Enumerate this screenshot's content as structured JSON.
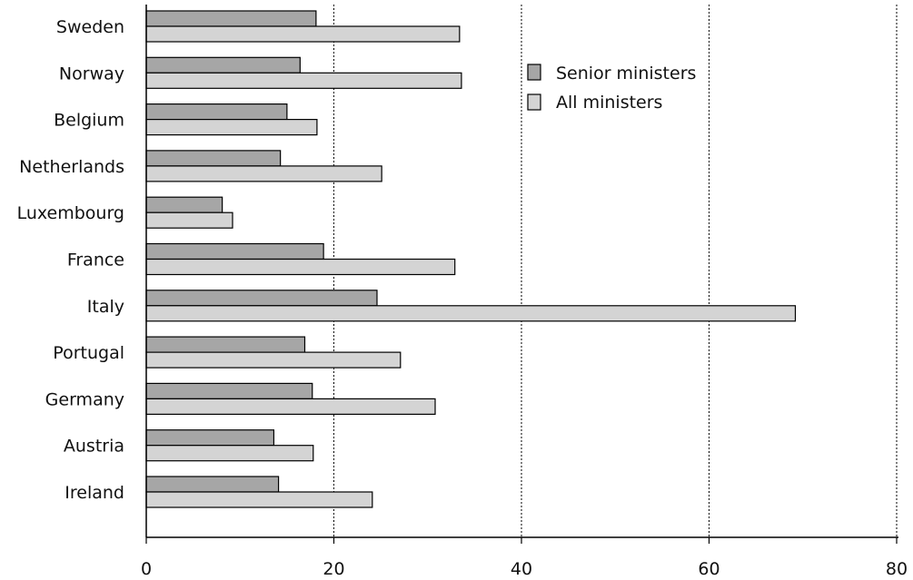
{
  "chart_data": {
    "type": "bar",
    "orientation": "horizontal",
    "categories": [
      "Sweden",
      "Norway",
      "Belgium",
      "Netherlands",
      "Luxembourg",
      "France",
      "Italy",
      "Portugal",
      "Germany",
      "Austria",
      "Ireland"
    ],
    "series": [
      {
        "name": "Senior ministers",
        "color": "#a6a6a6",
        "values": [
          18.1,
          16.4,
          15.0,
          14.3,
          8.1,
          18.9,
          24.6,
          16.9,
          17.7,
          13.6,
          14.1
        ]
      },
      {
        "name": "All ministers",
        "color": "#d4d4d4",
        "values": [
          33.4,
          33.6,
          18.2,
          25.1,
          9.2,
          32.9,
          69.2,
          27.1,
          30.8,
          17.8,
          24.1
        ]
      }
    ],
    "xlim": [
      0,
      80
    ],
    "xticks": [
      "0",
      "20",
      "40",
      "60",
      "80"
    ],
    "grid": "vertical dashed at major ticks",
    "legend_position": "top-center",
    "title": "",
    "xlabel": "",
    "ylabel": ""
  }
}
